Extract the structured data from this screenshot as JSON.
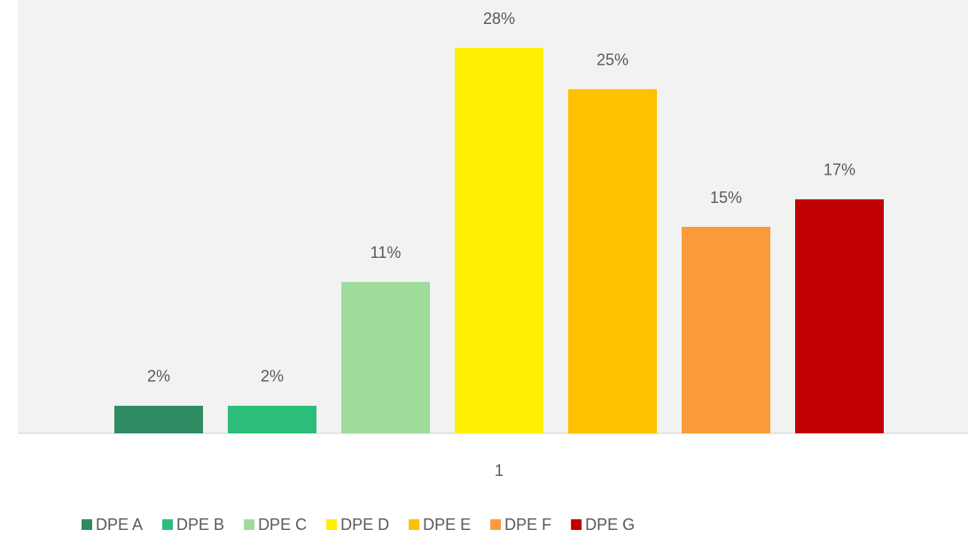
{
  "chart_data": {
    "type": "bar",
    "categories": [
      "1"
    ],
    "series": [
      {
        "name": "DPE A",
        "color": "#2e8b62",
        "values": [
          2
        ],
        "value_labels": [
          "2%"
        ]
      },
      {
        "name": "DPE B",
        "color": "#2dbd7a",
        "values": [
          2
        ],
        "value_labels": [
          "2%"
        ]
      },
      {
        "name": "DPE C",
        "color": "#9fdc9c",
        "values": [
          11
        ],
        "value_labels": [
          "11%"
        ]
      },
      {
        "name": "DPE D",
        "color": "#ffef00",
        "values": [
          28
        ],
        "value_labels": [
          "28%"
        ]
      },
      {
        "name": "DPE E",
        "color": "#ffc000",
        "values": [
          25
        ],
        "value_labels": [
          "25%"
        ]
      },
      {
        "name": "DPE F",
        "color": "#fa9a3a",
        "values": [
          15
        ],
        "value_labels": [
          "15%"
        ]
      },
      {
        "name": "DPE G",
        "color": "#c00000",
        "values": [
          17
        ],
        "value_labels": [
          "17%"
        ]
      }
    ],
    "ylim": [
      0,
      30
    ],
    "legend": "bottom"
  }
}
